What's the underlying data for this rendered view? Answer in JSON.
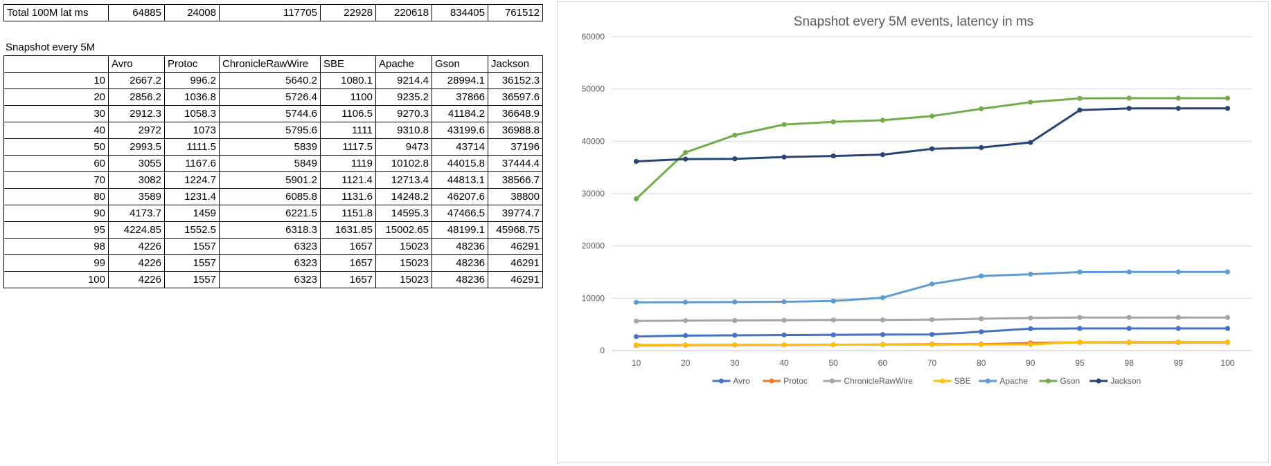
{
  "total_table": {
    "label": "Total 100M lat ms",
    "values": [
      "64885",
      "24008",
      "117705",
      "22928",
      "220618",
      "834405",
      "761512"
    ]
  },
  "snapshot_table": {
    "title": "Snapshot every 5M",
    "headers": [
      "Avro",
      "Protoc",
      "ChronicleRawWire",
      "SBE",
      "Apache",
      "Gson",
      "Jackson"
    ],
    "rows": [
      [
        "10",
        "2667.2",
        "996.2",
        "5640.2",
        "1080.1",
        "9214.4",
        "28994.1",
        "36152.3"
      ],
      [
        "20",
        "2856.2",
        "1036.8",
        "5726.4",
        "1100",
        "9235.2",
        "37866",
        "36597.6"
      ],
      [
        "30",
        "2912.3",
        "1058.3",
        "5744.6",
        "1106.5",
        "9270.3",
        "41184.2",
        "36648.9"
      ],
      [
        "40",
        "2972",
        "1073",
        "5795.6",
        "1111",
        "9310.8",
        "43199.6",
        "36988.8"
      ],
      [
        "50",
        "2993.5",
        "1111.5",
        "5839",
        "1117.5",
        "9473",
        "43714",
        "37196"
      ],
      [
        "60",
        "3055",
        "1167.6",
        "5849",
        "1119",
        "10102.8",
        "44015.8",
        "37444.4"
      ],
      [
        "70",
        "3082",
        "1224.7",
        "5901.2",
        "1121.4",
        "12713.4",
        "44813.1",
        "38566.7"
      ],
      [
        "80",
        "3589",
        "1231.4",
        "6085.8",
        "1131.6",
        "14248.2",
        "46207.6",
        "38800"
      ],
      [
        "90",
        "4173.7",
        "1459",
        "6221.5",
        "1151.8",
        "14595.3",
        "47466.5",
        "39774.7"
      ],
      [
        "95",
        "4224.85",
        "1552.5",
        "6318.3",
        "1631.85",
        "15002.65",
        "48199.1",
        "45968.75"
      ],
      [
        "98",
        "4226",
        "1557",
        "6323",
        "1657",
        "15023",
        "48236",
        "46291"
      ],
      [
        "99",
        "4226",
        "1557",
        "6323",
        "1657",
        "15023",
        "48236",
        "46291"
      ],
      [
        "100",
        "4226",
        "1557",
        "6323",
        "1657",
        "15023",
        "48236",
        "46291"
      ]
    ]
  },
  "chart_data": {
    "type": "line",
    "title": "Snapshot every 5M events, latency in ms",
    "categories": [
      "10",
      "20",
      "30",
      "40",
      "50",
      "60",
      "70",
      "80",
      "90",
      "95",
      "98",
      "99",
      "100"
    ],
    "ylim": [
      0,
      60000
    ],
    "yticks": [
      0,
      10000,
      20000,
      30000,
      40000,
      50000,
      60000
    ],
    "grid": true,
    "legend_position": "bottom",
    "series": [
      {
        "name": "Avro",
        "color": "#4472c4",
        "values": [
          2667.2,
          2856.2,
          2912.3,
          2972,
          2993.5,
          3055,
          3082,
          3589,
          4173.7,
          4224.85,
          4226,
          4226,
          4226
        ]
      },
      {
        "name": "Protoc",
        "color": "#ed7d31",
        "values": [
          996.2,
          1036.8,
          1058.3,
          1073,
          1111.5,
          1167.6,
          1224.7,
          1231.4,
          1459,
          1552.5,
          1557,
          1557,
          1557
        ]
      },
      {
        "name": "ChronicleRawWire",
        "color": "#a5a5a5",
        "values": [
          5640.2,
          5726.4,
          5744.6,
          5795.6,
          5839,
          5849,
          5901.2,
          6085.8,
          6221.5,
          6318.3,
          6323,
          6323,
          6323
        ]
      },
      {
        "name": "SBE",
        "color": "#ffc000",
        "values": [
          1080.1,
          1100,
          1106.5,
          1111,
          1117.5,
          1119,
          1121.4,
          1131.6,
          1151.8,
          1631.85,
          1657,
          1657,
          1657
        ]
      },
      {
        "name": "Apache",
        "color": "#5b9bd5",
        "values": [
          9214.4,
          9235.2,
          9270.3,
          9310.8,
          9473,
          10102.8,
          12713.4,
          14248.2,
          14595.3,
          15002.65,
          15023,
          15023,
          15023
        ]
      },
      {
        "name": "Gson",
        "color": "#70ad47",
        "values": [
          28994.1,
          37866,
          41184.2,
          43199.6,
          43714,
          44015.8,
          44813.1,
          46207.6,
          47466.5,
          48199.1,
          48236,
          48236,
          48236
        ]
      },
      {
        "name": "Jackson",
        "color": "#264478",
        "values": [
          36152.3,
          36597.6,
          36648.9,
          36988.8,
          37196,
          37444.4,
          38566.7,
          38800,
          39774.7,
          45968.75,
          46291,
          46291,
          46291
        ]
      }
    ]
  }
}
